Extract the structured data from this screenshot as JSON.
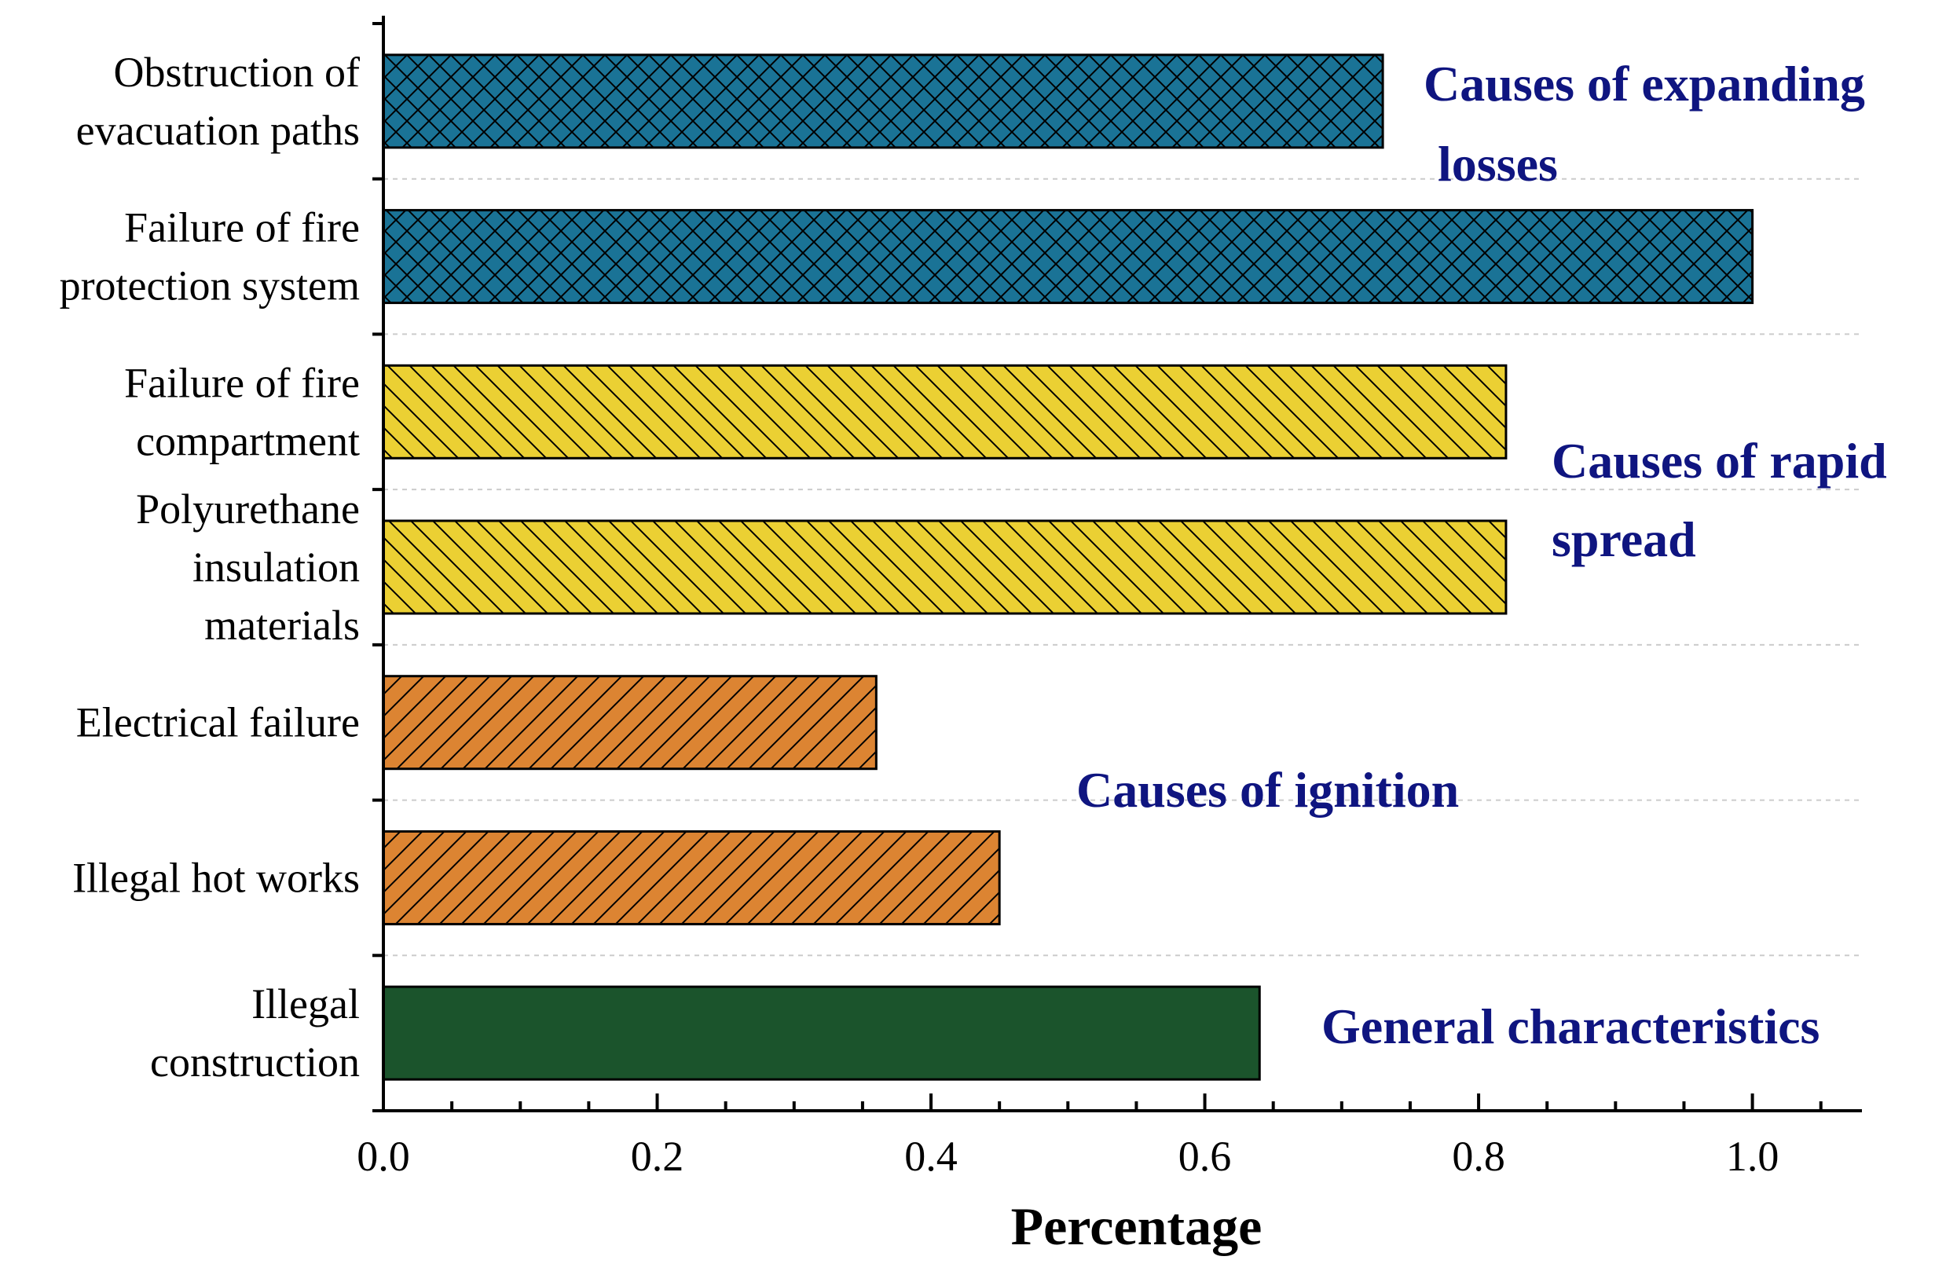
{
  "chart_data": {
    "type": "bar",
    "orientation": "horizontal",
    "xlabel": "Percentage",
    "ylabel": "",
    "xlim": [
      0,
      1.08
    ],
    "xticks": [
      "0.0",
      "0.2",
      "0.4",
      "0.6",
      "0.8",
      "1.0"
    ],
    "grid": "horizontal dashed separators",
    "categories": [
      {
        "lines": [
          "Obstruction of",
          "evacuation paths"
        ],
        "value": 0.73,
        "group": "expanding"
      },
      {
        "lines": [
          "Failure of fire",
          "protection system"
        ],
        "value": 1.0,
        "group": "expanding"
      },
      {
        "lines": [
          "Failure of fire",
          "compartment"
        ],
        "value": 0.82,
        "group": "spread"
      },
      {
        "lines": [
          "Polyurethane",
          "insulation",
          "materials"
        ],
        "value": 0.82,
        "group": "spread"
      },
      {
        "lines": [
          "Electrical failure"
        ],
        "value": 0.36,
        "group": "ignition"
      },
      {
        "lines": [
          "Illegal hot works"
        ],
        "value": 0.45,
        "group": "ignition"
      },
      {
        "lines": [
          "Illegal",
          "construction"
        ],
        "value": 0.64,
        "group": "general"
      }
    ],
    "groups": {
      "expanding": {
        "lines": [
          "Causes of expanding",
          "losses"
        ],
        "color": "#1a7396",
        "pattern": "crosshatch"
      },
      "spread": {
        "lines": [
          "Causes of rapid",
          "spread"
        ],
        "color": "#ebd033",
        "pattern": "backslash"
      },
      "ignition": {
        "lines": [
          "Causes of ignition"
        ],
        "color": "#dc8432",
        "pattern": "slash"
      },
      "general": {
        "lines": [
          "General characteristics"
        ],
        "color": "#1b542c",
        "pattern": "none"
      }
    },
    "group_label_color": "#0f1580"
  }
}
